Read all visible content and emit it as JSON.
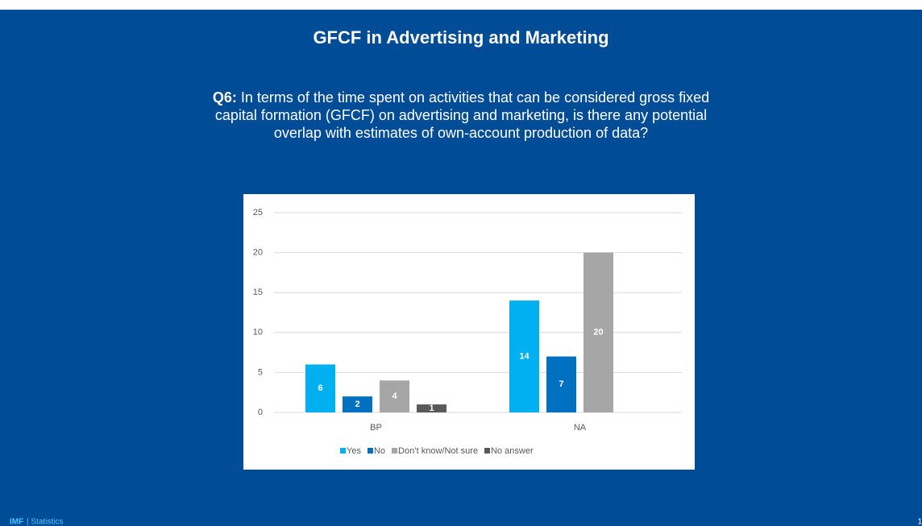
{
  "slide": {
    "title": "GFCF in Advertising and Marketing",
    "question_label": "Q6:",
    "question": "In terms of the time spent on activities that can be considered gross fixed capital formation (GFCF) on advertising and marketing, is there any potential overlap with estimates of own-account production of data?",
    "footer_brand": "IMF",
    "footer_text": "| Statistics",
    "page_number": "1"
  },
  "chart_data": {
    "type": "bar",
    "categories": [
      "BP",
      "NA"
    ],
    "series": [
      {
        "name": "Yes",
        "color": "#00B0F0",
        "values": [
          6,
          14
        ]
      },
      {
        "name": "No",
        "color": "#0070C0",
        "values": [
          2,
          7
        ]
      },
      {
        "name": "Don’t know/Not sure",
        "color": "#A6A6A6",
        "values": [
          4,
          20
        ]
      },
      {
        "name": "No answer",
        "color": "#595959",
        "values": [
          1,
          null
        ]
      }
    ],
    "ylim": [
      0,
      25
    ],
    "yticks": [
      0,
      5,
      10,
      15,
      20,
      25
    ],
    "grid": true,
    "legend": "bottom"
  }
}
